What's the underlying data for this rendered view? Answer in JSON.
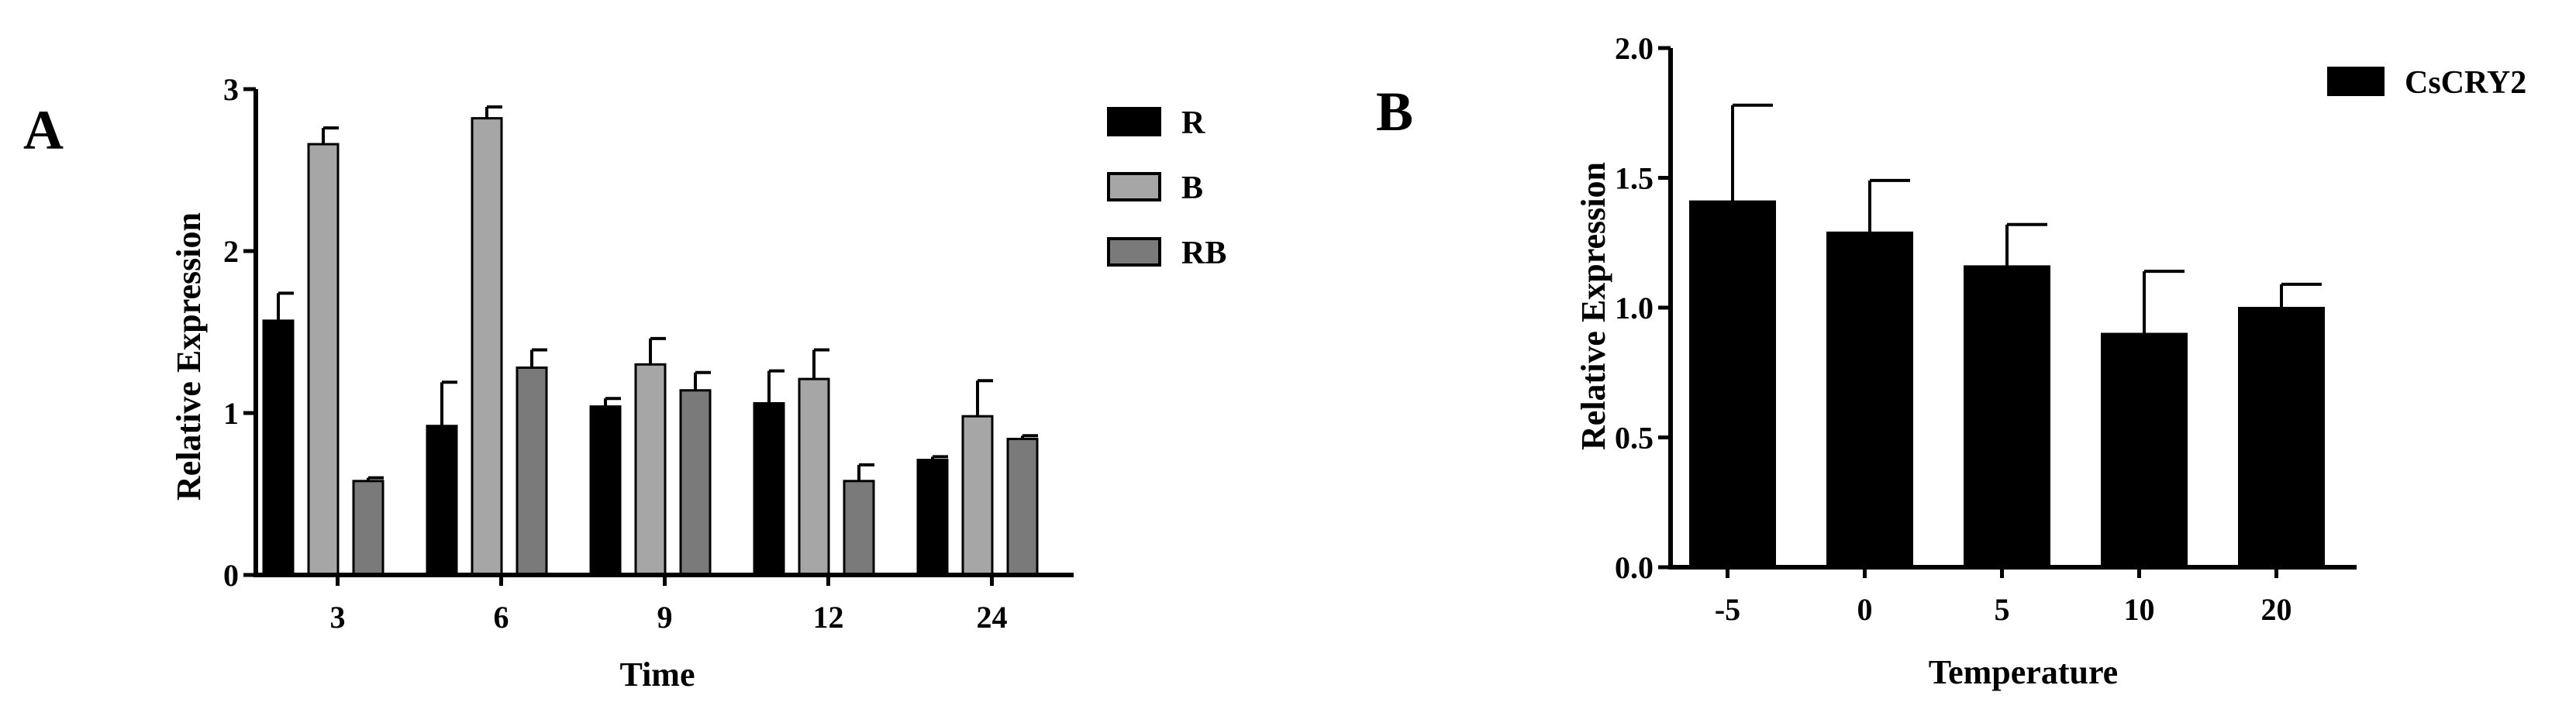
{
  "panels": [
    {
      "letter": "A",
      "chart_data": {
        "type": "bar",
        "title": "",
        "xlabel": "Time",
        "ylabel": "Relative Expression",
        "categories": [
          "3",
          "6",
          "9",
          "12",
          "24"
        ],
        "ylim": [
          0,
          3
        ],
        "yticks": [
          "0",
          "1",
          "2",
          "3"
        ],
        "legend_position": "right",
        "series": [
          {
            "name": "R",
            "color": "#000000",
            "values": [
              1.57,
              0.92,
              1.04,
              1.06,
              0.71
            ],
            "errors": [
              0.17,
              0.27,
              0.05,
              0.2,
              0.02
            ]
          },
          {
            "name": "B",
            "color": "#a6a6a6",
            "values": [
              2.66,
              2.82,
              1.3,
              1.21,
              0.98
            ],
            "errors": [
              0.1,
              0.07,
              0.16,
              0.18,
              0.22
            ]
          },
          {
            "name": "RB",
            "color": "#7a7a7a",
            "values": [
              0.58,
              1.28,
              1.14,
              0.58,
              0.84
            ],
            "errors": [
              0.02,
              0.11,
              0.11,
              0.1,
              0.02
            ]
          }
        ]
      }
    },
    {
      "letter": "B",
      "chart_data": {
        "type": "bar",
        "title": "",
        "xlabel": "Temperature",
        "ylabel": "Relative Expression",
        "categories": [
          "-5",
          "0",
          "5",
          "10",
          "20"
        ],
        "ylim": [
          0,
          2
        ],
        "yticks": [
          "0.0",
          "0.5",
          "1.0",
          "1.5",
          "2.0"
        ],
        "legend_position": "top-right",
        "series": [
          {
            "name": "CsCRY2",
            "color": "#000000",
            "values": [
              1.41,
              1.29,
              1.16,
              0.9,
              1.0
            ],
            "errors": [
              0.37,
              0.2,
              0.16,
              0.24,
              0.09
            ]
          }
        ]
      }
    }
  ]
}
